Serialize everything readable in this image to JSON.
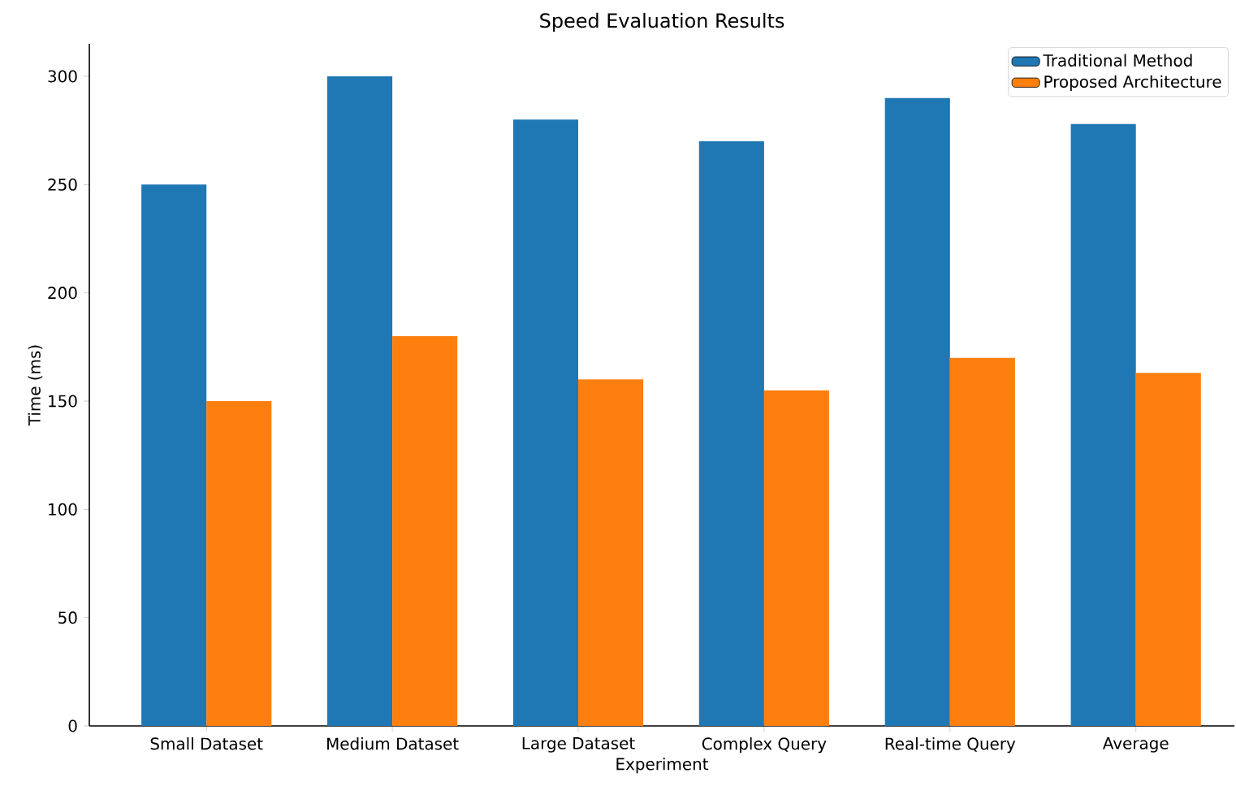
{
  "chart_data": {
    "type": "bar",
    "title": "Speed Evaluation Results",
    "xlabel": "Experiment",
    "ylabel": "Time (ms)",
    "categories": [
      "Small Dataset",
      "Medium Dataset",
      "Large Dataset",
      "Complex Query",
      "Real-time Query",
      "Average"
    ],
    "series": [
      {
        "name": "Traditional Method",
        "color": "#1f77b4",
        "values": [
          250,
          300,
          280,
          270,
          290,
          278
        ]
      },
      {
        "name": "Proposed Architecture",
        "color": "#ff7f0e",
        "values": [
          150,
          180,
          160,
          155,
          170,
          163
        ]
      }
    ],
    "ylim": [
      0,
      315
    ],
    "yticks": [
      0,
      50,
      100,
      150,
      200,
      250,
      300
    ],
    "legend": "top right"
  }
}
